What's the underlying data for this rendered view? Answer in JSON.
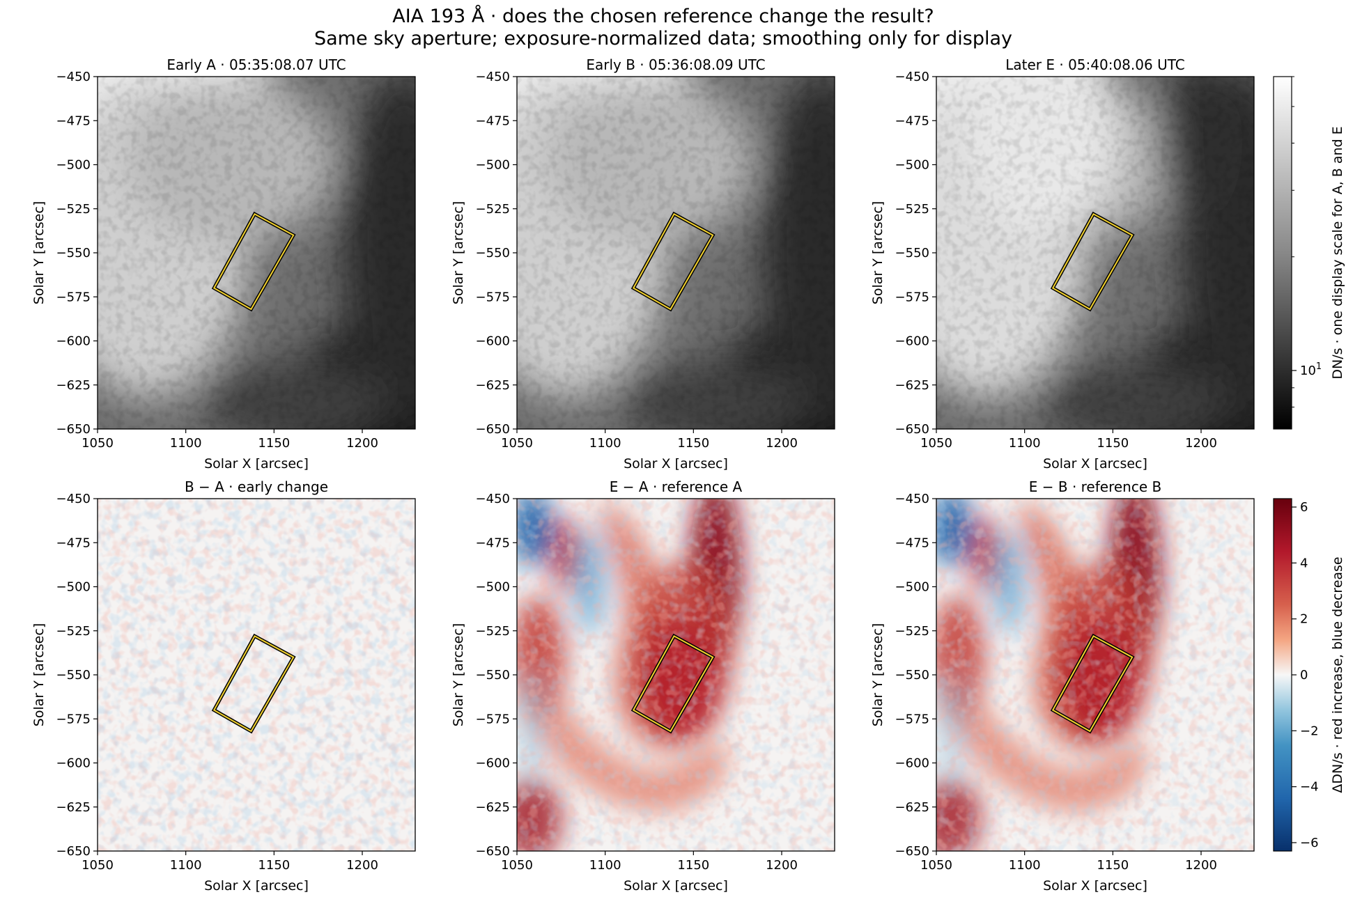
{
  "figure": {
    "title": "AIA 193 Å · does the chosen reference change the result?",
    "subtitle": "Same sky aperture; exposure-normalized data; smoothing only for display"
  },
  "colors": {
    "aperture_outer": "#000000",
    "aperture_inner": "#f2d12e",
    "gray_low": "#000000",
    "gray_high": "#ffffff",
    "diverging_neg": "#08306b",
    "diverging_mid": "#f7f7f7",
    "diverging_pos": "#67000d"
  },
  "chart_data": [
    {
      "type": "heatmap",
      "title": "Early A · 05:35:08.07 UTC",
      "xlabel": "Solar X [arcsec]",
      "ylabel": "Solar Y [arcsec]",
      "xlim": [
        1050,
        1230
      ],
      "ylim": [
        -650,
        -450
      ],
      "xticks": [
        1050,
        1100,
        1150,
        1200
      ],
      "yticks": [
        -650,
        -625,
        -600,
        -575,
        -550,
        -525,
        -500,
        -475,
        -450
      ],
      "colormap": "gray",
      "aperture": [
        [
          1116,
          -570
        ],
        [
          1139,
          -528
        ],
        [
          1161,
          -540
        ],
        [
          1137,
          -582
        ]
      ],
      "xtick_labels": [
        "1050",
        "1100",
        "1150",
        "1200"
      ],
      "ytick_labels": [
        "−650",
        "−625",
        "−600",
        "−575",
        "−550",
        "−525",
        "−500",
        "−475",
        "−450"
      ]
    },
    {
      "type": "heatmap",
      "title": "Early B · 05:36:08.09 UTC",
      "xlabel": "Solar X [arcsec]",
      "ylabel": "Solar Y [arcsec]",
      "xlim": [
        1050,
        1230
      ],
      "ylim": [
        -650,
        -450
      ],
      "xticks": [
        1050,
        1100,
        1150,
        1200
      ],
      "yticks": [
        -650,
        -625,
        -600,
        -575,
        -550,
        -525,
        -500,
        -475,
        -450
      ],
      "colormap": "gray",
      "aperture": [
        [
          1116,
          -570
        ],
        [
          1139,
          -528
        ],
        [
          1161,
          -540
        ],
        [
          1137,
          -582
        ]
      ],
      "xtick_labels": [
        "1050",
        "1100",
        "1150",
        "1200"
      ],
      "ytick_labels": [
        "−650",
        "−625",
        "−600",
        "−575",
        "−550",
        "−525",
        "−500",
        "−475",
        "−450"
      ]
    },
    {
      "type": "heatmap",
      "title": "Later E · 05:40:08.06 UTC",
      "xlabel": "Solar X [arcsec]",
      "ylabel": "Solar Y [arcsec]",
      "xlim": [
        1050,
        1230
      ],
      "ylim": [
        -650,
        -450
      ],
      "xticks": [
        1050,
        1100,
        1150,
        1200
      ],
      "yticks": [
        -650,
        -625,
        -600,
        -575,
        -550,
        -525,
        -500,
        -475,
        -450
      ],
      "colormap": "gray",
      "aperture": [
        [
          1116,
          -570
        ],
        [
          1139,
          -528
        ],
        [
          1161,
          -540
        ],
        [
          1137,
          -582
        ]
      ],
      "xtick_labels": [
        "1050",
        "1100",
        "1150",
        "1200"
      ],
      "ytick_labels": [
        "−650",
        "−625",
        "−600",
        "−575",
        "−550",
        "−525",
        "−500",
        "−475",
        "−450"
      ]
    },
    {
      "type": "heatmap",
      "title": "B − A · early change",
      "xlabel": "Solar X [arcsec]",
      "ylabel": "Solar Y [arcsec]",
      "xlim": [
        1050,
        1230
      ],
      "ylim": [
        -650,
        -450
      ],
      "xticks": [
        1050,
        1100,
        1150,
        1200
      ],
      "yticks": [
        -650,
        -625,
        -600,
        -575,
        -550,
        -525,
        -500,
        -475,
        -450
      ],
      "colormap": "RdBu_r",
      "aperture": [
        [
          1116,
          -570
        ],
        [
          1139,
          -528
        ],
        [
          1161,
          -540
        ],
        [
          1137,
          -582
        ]
      ],
      "xtick_labels": [
        "1050",
        "1100",
        "1150",
        "1200"
      ],
      "ytick_labels": [
        "−650",
        "−625",
        "−600",
        "−575",
        "−550",
        "−525",
        "−500",
        "−475",
        "−450"
      ]
    },
    {
      "type": "heatmap",
      "title": "E − A · reference A",
      "xlabel": "Solar X [arcsec]",
      "ylabel": "Solar Y [arcsec]",
      "xlim": [
        1050,
        1230
      ],
      "ylim": [
        -650,
        -450
      ],
      "xticks": [
        1050,
        1100,
        1150,
        1200
      ],
      "yticks": [
        -650,
        -625,
        -600,
        -575,
        -550,
        -525,
        -500,
        -475,
        -450
      ],
      "colormap": "RdBu_r",
      "aperture": [
        [
          1116,
          -570
        ],
        [
          1139,
          -528
        ],
        [
          1161,
          -540
        ],
        [
          1137,
          -582
        ]
      ],
      "xtick_labels": [
        "1050",
        "1100",
        "1150",
        "1200"
      ],
      "ytick_labels": [
        "−650",
        "−625",
        "−600",
        "−575",
        "−550",
        "−525",
        "−500",
        "−475",
        "−450"
      ]
    },
    {
      "type": "heatmap",
      "title": "E − B · reference B",
      "xlabel": "Solar X [arcsec]",
      "ylabel": "Solar Y [arcsec]",
      "xlim": [
        1050,
        1230
      ],
      "ylim": [
        -650,
        -450
      ],
      "xticks": [
        1050,
        1100,
        1150,
        1200
      ],
      "yticks": [
        -650,
        -625,
        -600,
        -575,
        -550,
        -525,
        -500,
        -475,
        -450
      ],
      "colormap": "RdBu_r",
      "aperture": [
        [
          1116,
          -570
        ],
        [
          1139,
          -528
        ],
        [
          1161,
          -540
        ],
        [
          1137,
          -582
        ]
      ],
      "xtick_labels": [
        "1050",
        "1100",
        "1150",
        "1200"
      ],
      "ytick_labels": [
        "−650",
        "−625",
        "−600",
        "−575",
        "−550",
        "−525",
        "−500",
        "−475",
        "−450"
      ]
    }
  ],
  "colorbars": [
    {
      "label": "DN/s · one display scale for A, B and E",
      "scale": "log",
      "tick_labels": [
        {
          "text": "10",
          "sup": "1",
          "value": 10
        }
      ],
      "range": [
        7,
        60
      ]
    },
    {
      "label": "ΔDN/s · red increase, blue decrease",
      "scale": "linear",
      "range": [
        -6.3,
        6.3
      ],
      "tick_labels": [
        {
          "text": "−6",
          "value": -6
        },
        {
          "text": "−4",
          "value": -4
        },
        {
          "text": "−2",
          "value": -2
        },
        {
          "text": "0",
          "value": 0
        },
        {
          "text": "2",
          "value": 2
        },
        {
          "text": "4",
          "value": 4
        },
        {
          "text": "6",
          "value": 6
        }
      ]
    }
  ]
}
